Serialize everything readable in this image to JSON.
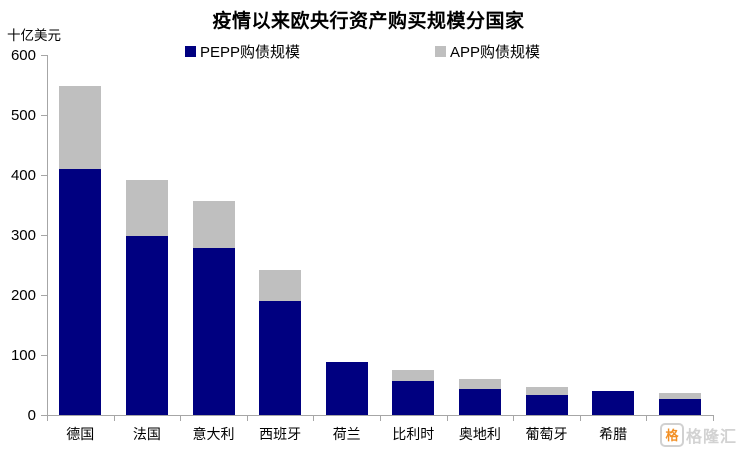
{
  "header": {
    "title": "疫情以来欧央行资产购买规模分国家",
    "unit_label": "十亿美元"
  },
  "legend": [
    {
      "label": "PEPP购债规模",
      "color": "#000080"
    },
    {
      "label": "APP购债规模",
      "color": "#bfbfbf"
    }
  ],
  "watermark": {
    "logo_glyph": "格",
    "brand_text": "格隆汇"
  },
  "chart_data": {
    "type": "bar",
    "stacked": true,
    "title": "疫情以来欧央行资产购买规模分国家",
    "ylabel": "十亿美元",
    "xlabel": "",
    "ylim": [
      0,
      600
    ],
    "ytick_step": 100,
    "grid": false,
    "legend_position": "top",
    "categories": [
      "德国",
      "法国",
      "意大利",
      "西班牙",
      "荷兰",
      "比利时",
      "奥地利",
      "葡萄牙",
      "希腊",
      ""
    ],
    "series": [
      {
        "name": "PEPP购债规模",
        "color": "#000080",
        "values": [
          410,
          298,
          279,
          190,
          88,
          57,
          43,
          34,
          40,
          26
        ]
      },
      {
        "name": "APP购债规模",
        "color": "#bfbfbf",
        "values": [
          138,
          94,
          78,
          52,
          0,
          18,
          17,
          13,
          0,
          10
        ]
      }
    ],
    "colors": {
      "axis": "#a6a6a6",
      "text": "#000000"
    }
  }
}
